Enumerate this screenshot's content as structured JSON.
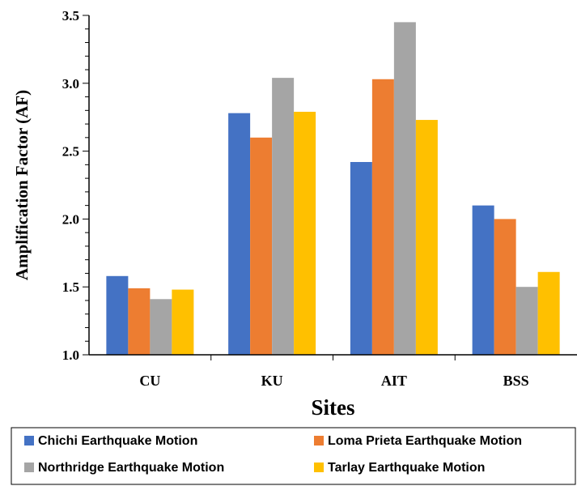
{
  "chart_data": {
    "type": "bar",
    "categories": [
      "CU",
      "KU",
      "AIT",
      "BSS"
    ],
    "series": [
      {
        "name": "Chichi Earthquake Motion",
        "color": "#4472C4",
        "values": [
          1.58,
          2.78,
          2.42,
          2.1
        ]
      },
      {
        "name": "Loma Prieta Earthquake Motion",
        "color": "#ED7D31",
        "values": [
          1.49,
          2.6,
          3.03,
          2.0
        ]
      },
      {
        "name": "Northridge Earthquake Motion",
        "color": "#A5A5A5",
        "values": [
          1.41,
          3.04,
          3.45,
          1.5
        ]
      },
      {
        "name": "Tarlay Earthquake Motion",
        "color": "#FFC000",
        "values": [
          1.48,
          2.79,
          2.73,
          1.61
        ]
      }
    ],
    "xlabel": "Sites",
    "ylabel": "Amplification Factor (AF)",
    "ylim": [
      1.0,
      3.5
    ],
    "yticks": [
      "1.0",
      "1.5",
      "2.0",
      "2.5",
      "3.0",
      "3.5"
    ],
    "grid": false,
    "legend_position": "bottom"
  }
}
